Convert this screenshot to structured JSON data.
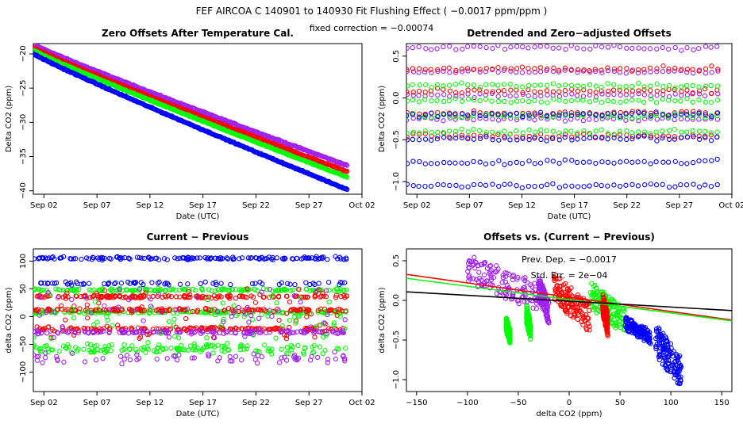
{
  "header": {
    "title": "FEF   AIRCOA C   140901 to 140930   Fit Flushing Effect ( −0.0017 ppm/ppm )",
    "subtitle": "fixed correction = −0.00074"
  },
  "colors": {
    "purple": "#a020f0",
    "red": "#ff0000",
    "green": "#00ff00",
    "blue": "#0000ff",
    "black": "#000000"
  },
  "chart_data": [
    {
      "id": "zero-offsets",
      "type": "scatter",
      "title": "Zero Offsets After Temperature Cal.",
      "xlabel": "Date (UTC)",
      "ylabel": "Delta CO2 (ppm)",
      "xlim": [
        0,
        31
      ],
      "ylim": [
        -40.5,
        -18.5
      ],
      "xticks": [
        1,
        6,
        11,
        16,
        21,
        26,
        31
      ],
      "xtick_labels": [
        "Sep 02",
        "Sep 07",
        "Sep 12",
        "Sep 17",
        "Sep 22",
        "Sep 27",
        "Oct 02"
      ],
      "yticks": [
        -40,
        -35,
        -30,
        -25,
        -20
      ],
      "ytick_labels": [
        "−40",
        "−35",
        "−30",
        "−25",
        "−20"
      ],
      "series": [
        {
          "name": "purple",
          "color": "#a020f0",
          "start": 0.0,
          "end": 29.6,
          "y_start": -18.6,
          "y_end": -36.3,
          "spread": 0.35
        },
        {
          "name": "red",
          "color": "#ff0000",
          "start": 0.0,
          "end": 29.6,
          "y_start": -19.1,
          "y_end": -37.2,
          "spread": 0.3
        },
        {
          "name": "green",
          "color": "#00ff00",
          "start": 0.0,
          "end": 29.6,
          "y_start": -19.5,
          "y_end": -38.0,
          "spread": 0.3
        },
        {
          "name": "blue",
          "color": "#0000ff",
          "start": 0.0,
          "end": 29.6,
          "y_start": -20.0,
          "y_end": -39.8,
          "spread": 0.3
        }
      ]
    },
    {
      "id": "detrended-offsets",
      "type": "scatter",
      "title": "Detrended and Zero−adjusted Offsets",
      "xlabel": "Date (UTC)",
      "ylabel": "Delta CO2 (ppm)",
      "xlim": [
        0,
        31
      ],
      "ylim": [
        -1.15,
        0.65
      ],
      "xticks": [
        1,
        6,
        11,
        16,
        21,
        26,
        31
      ],
      "xtick_labels": [
        "Sep 02",
        "Sep 07",
        "Sep 12",
        "Sep 17",
        "Sep 22",
        "Sep 27",
        "Oct 02"
      ],
      "yticks": [
        -1.0,
        -0.5,
        0.0,
        0.5
      ],
      "ytick_labels": [
        "−1.0",
        "−0.5",
        "0.0",
        "0.5"
      ],
      "series": [
        {
          "name": "purple",
          "color": "#a020f0",
          "range": [
            -0.25,
            0.6
          ]
        },
        {
          "name": "red",
          "color": "#ff0000",
          "range": [
            -0.45,
            0.35
          ]
        },
        {
          "name": "green",
          "color": "#00ff00",
          "range": [
            -0.4,
            0.15
          ]
        },
        {
          "name": "blue",
          "color": "#0000ff",
          "range": [
            -1.05,
            -0.2
          ]
        }
      ]
    },
    {
      "id": "current-minus-previous",
      "type": "scatter",
      "title": "Current − Previous",
      "xlabel": "Date (UTC)",
      "ylabel": "delta CO2 (ppm)",
      "xlim": [
        0,
        31
      ],
      "ylim": [
        -135,
        122
      ],
      "xticks": [
        1,
        6,
        11,
        16,
        21,
        26,
        31
      ],
      "xtick_labels": [
        "Sep 02",
        "Sep 07",
        "Sep 12",
        "Sep 17",
        "Sep 22",
        "Sep 27",
        "Oct 02"
      ],
      "yticks": [
        -100,
        -50,
        0,
        50,
        100
      ],
      "ytick_labels": [
        "−100",
        "−50",
        "0",
        "50",
        "100"
      ],
      "series": [
        {
          "name": "blue",
          "color": "#0000ff",
          "levels": [
            105,
            60
          ]
        },
        {
          "name": "green",
          "color": "#00ff00",
          "levels": [
            48,
            8,
            -58
          ]
        },
        {
          "name": "red",
          "color": "#ff0000",
          "levels": [
            36,
            12,
            -22
          ]
        },
        {
          "name": "purple",
          "color": "#a020f0",
          "levels": [
            -28,
            -75
          ]
        }
      ]
    },
    {
      "id": "offsets-vs-diff",
      "type": "scatter",
      "title": "Offsets vs. (Current − Previous)",
      "xlabel": "delta CO2 (ppm)",
      "ylabel": "delta CO2 (ppm)",
      "xlim": [
        -160,
        160
      ],
      "ylim": [
        -1.15,
        0.65
      ],
      "xticks": [
        -150,
        -100,
        -50,
        0,
        50,
        100,
        150
      ],
      "xtick_labels": [
        "−150",
        "−100",
        "−50",
        "0",
        "50",
        "100",
        "150"
      ],
      "yticks": [
        -1.0,
        -0.5,
        0.0,
        0.5
      ],
      "ytick_labels": [
        "−1.0",
        "−0.5",
        "0.0",
        "0.5"
      ],
      "annotations": [
        "Prev. Dep. =  −0.0017",
        "Std. Err. = 2e−04"
      ],
      "fit_lines": [
        {
          "name": "red",
          "color": "#ff0000",
          "intercept": 0.04,
          "slope": -0.0018
        },
        {
          "name": "green",
          "color": "#00ff00",
          "intercept": 0.01,
          "slope": -0.00168
        },
        {
          "name": "black",
          "color": "#000000",
          "intercept": -0.01,
          "slope": -0.00074
        }
      ],
      "clusters": [
        {
          "name": "purple",
          "color": "#a020f0",
          "x_range": [
            -100,
            -30
          ],
          "y_range": [
            -0.15,
            0.6
          ]
        },
        {
          "name": "purple",
          "color": "#a020f0",
          "x_range": [
            -30,
            -20
          ],
          "y_range": [
            -0.3,
            0.3
          ]
        },
        {
          "name": "green",
          "color": "#00ff00",
          "x_range": [
            -62,
            -58
          ],
          "y_range": [
            -0.55,
            -0.2
          ]
        },
        {
          "name": "green",
          "color": "#00ff00",
          "x_range": [
            -42,
            -38
          ],
          "y_range": [
            -0.5,
            -0.05
          ]
        },
        {
          "name": "green",
          "color": "#00ff00",
          "x_range": [
            20,
            55
          ],
          "y_range": [
            -0.45,
            0.25
          ]
        },
        {
          "name": "red",
          "color": "#ff0000",
          "x_range": [
            -15,
            20
          ],
          "y_range": [
            -0.4,
            0.35
          ]
        },
        {
          "name": "red",
          "color": "#ff0000",
          "x_range": [
            33,
            38
          ],
          "y_range": [
            -0.45,
            0.1
          ]
        },
        {
          "name": "blue",
          "color": "#0000ff",
          "x_range": [
            55,
            80
          ],
          "y_range": [
            -0.55,
            -0.2
          ]
        },
        {
          "name": "blue",
          "color": "#0000ff",
          "x_range": [
            85,
            110
          ],
          "y_range": [
            -1.1,
            -0.3
          ]
        }
      ]
    }
  ]
}
